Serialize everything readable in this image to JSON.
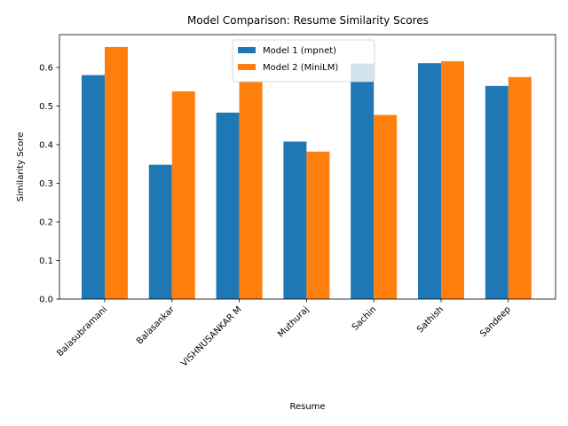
{
  "chart_data": {
    "type": "bar",
    "title": "Model Comparison: Resume Similarity Scores",
    "xlabel": "Resume",
    "ylabel": "Similarity Score",
    "categories": [
      "Balasubramani",
      "Balasankar",
      "VISHNUSANKAR M",
      "Muthuraj",
      "Sachin",
      "Sathish",
      "Sandeep"
    ],
    "series": [
      {
        "name": "Model 1 (mpnet)",
        "color": "#1f77b4",
        "values": [
          0.58,
          0.348,
          0.483,
          0.408,
          0.61,
          0.611,
          0.552
        ]
      },
      {
        "name": "Model 2 (MiniLM)",
        "color": "#ff7f0e",
        "values": [
          0.653,
          0.538,
          0.562,
          0.382,
          0.477,
          0.616,
          0.575
        ]
      }
    ],
    "ylim": [
      0,
      0.685
    ],
    "yticks": [
      "0.0",
      "0.1",
      "0.2",
      "0.3",
      "0.4",
      "0.5",
      "0.6"
    ],
    "ytick_values": [
      0,
      0.1,
      0.2,
      0.3,
      0.4,
      0.5,
      0.6
    ],
    "xtick_rotation_deg": 45,
    "grid": false,
    "legend_position": "top-center"
  }
}
